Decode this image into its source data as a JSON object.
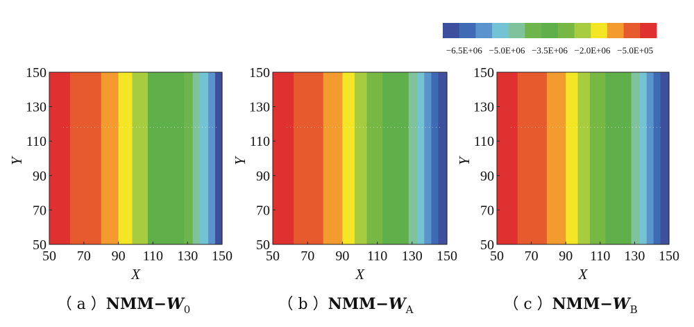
{
  "colors": [
    "#3d4f9d",
    "#3f6bb5",
    "#5b94cd",
    "#74c3d4",
    "#7fc29b",
    "#6db54c",
    "#5fb04a",
    "#77b845",
    "#a8cc3f",
    "#f4e525",
    "#f39b2f",
    "#e65a2d",
    "#e03030"
  ],
  "chart_data": [
    {
      "type": "heatmap",
      "panel_id": "a",
      "caption_prefix": "（ a ）",
      "caption_method": "NMM−",
      "caption_var": "W",
      "caption_sub": "0",
      "xlabel": "X",
      "ylabel": "Y",
      "xlim": [
        50,
        150
      ],
      "ylim": [
        50,
        150
      ],
      "xticks": [
        "50",
        "70",
        "90",
        "110",
        "130",
        "150"
      ],
      "yticks": [
        "50",
        "70",
        "90",
        "110",
        "130",
        "150"
      ],
      "band_edges_x": [
        50,
        62,
        80,
        90,
        98,
        107,
        128,
        133,
        137,
        142,
        146,
        150
      ],
      "band_color_index": [
        12,
        11,
        10,
        9,
        8,
        6,
        5,
        4,
        3,
        2,
        0
      ]
    },
    {
      "type": "heatmap",
      "panel_id": "b",
      "caption_prefix": "（ b ）",
      "caption_method": "NMM−",
      "caption_var": "W",
      "caption_sub": "A",
      "xlabel": "X",
      "ylabel": "Y",
      "xlim": [
        50,
        150
      ],
      "ylim": [
        50,
        150
      ],
      "xticks": [
        "50",
        "70",
        "90",
        "110",
        "130",
        "150"
      ],
      "yticks": [
        "50",
        "70",
        "90",
        "110",
        "130",
        "150"
      ],
      "band_edges_x": [
        50,
        62,
        79,
        90,
        97,
        104,
        113,
        128,
        133,
        137,
        141,
        145,
        150
      ],
      "band_color_index": [
        12,
        11,
        10,
        9,
        8,
        7,
        6,
        4,
        3,
        2,
        1,
        0
      ]
    },
    {
      "type": "heatmap",
      "panel_id": "c",
      "caption_prefix": "（ c ）",
      "caption_method": "NMM−",
      "caption_var": "W",
      "caption_sub": "B",
      "xlabel": "X",
      "ylabel": "Y",
      "xlim": [
        50,
        150
      ],
      "ylim": [
        50,
        150
      ],
      "xticks": [
        "50",
        "70",
        "90",
        "110",
        "130",
        "150"
      ],
      "yticks": [
        "50",
        "70",
        "90",
        "110",
        "130",
        "150"
      ],
      "band_edges_x": [
        50,
        62,
        79,
        90,
        97,
        104,
        113,
        128,
        133,
        137,
        141,
        145,
        150
      ],
      "band_color_index": [
        12,
        11,
        10,
        9,
        8,
        7,
        6,
        4,
        3,
        2,
        1,
        0
      ]
    }
  ],
  "colorbar": {
    "tick_labels": [
      "−6.5E+06",
      "−5.0E+06",
      "−3.5E+06",
      "−2.0E+06",
      "−5.0E+05"
    ],
    "tick_values": [
      -6500000,
      -5000000,
      -3500000,
      -2000000,
      -500000
    ],
    "range": [
      -7250000,
      250000
    ]
  }
}
